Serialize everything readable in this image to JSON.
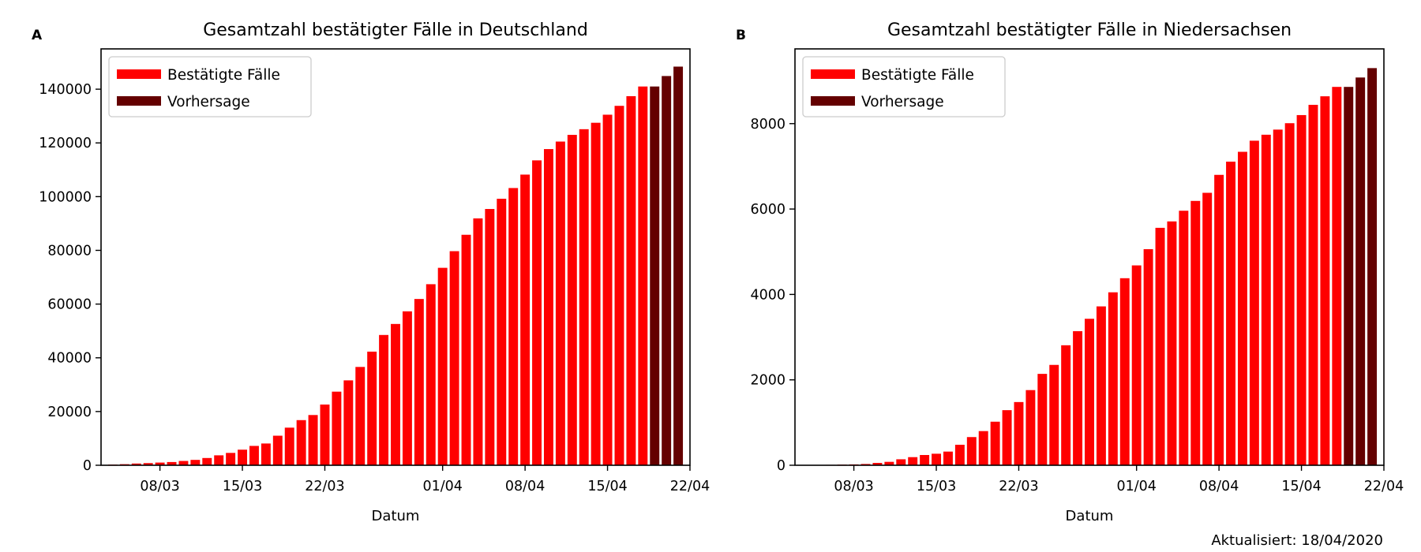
{
  "footer": "Aktualisiert: 18/04/2020",
  "colors": {
    "confirmed": "#ff0000",
    "forecast": "#640000",
    "axes": "#000000",
    "legend_border": "#cccccc"
  },
  "chart_data": [
    {
      "panel": "A",
      "type": "bar",
      "title": "Gesamtzahl bestätigter Fälle in Deutschland",
      "xlabel": "Datum",
      "ylabel": "",
      "legend": {
        "position": "top-left",
        "entries": [
          "Bestätigte Fälle",
          "Vorhersage"
        ]
      },
      "ylim": [
        0,
        155000
      ],
      "yticks": [
        0,
        20000,
        40000,
        60000,
        80000,
        100000,
        120000,
        140000
      ],
      "xlim": [
        "2020-03-03",
        "2020-04-22"
      ],
      "xticks": [
        {
          "date": "2020-03-08",
          "label": "08/03"
        },
        {
          "date": "2020-03-15",
          "label": "15/03"
        },
        {
          "date": "2020-03-22",
          "label": "22/03"
        },
        {
          "date": "2020-04-01",
          "label": "01/04"
        },
        {
          "date": "2020-04-08",
          "label": "08/04"
        },
        {
          "date": "2020-04-15",
          "label": "15/04"
        },
        {
          "date": "2020-04-22",
          "label": "22/04"
        }
      ],
      "series": [
        {
          "name": "Bestätigte Fälle",
          "x": [
            "2020-03-04",
            "2020-03-05",
            "2020-03-06",
            "2020-03-07",
            "2020-03-08",
            "2020-03-09",
            "2020-03-10",
            "2020-03-11",
            "2020-03-12",
            "2020-03-13",
            "2020-03-14",
            "2020-03-15",
            "2020-03-16",
            "2020-03-17",
            "2020-03-18",
            "2020-03-19",
            "2020-03-20",
            "2020-03-21",
            "2020-03-22",
            "2020-03-23",
            "2020-03-24",
            "2020-03-25",
            "2020-03-26",
            "2020-03-27",
            "2020-03-28",
            "2020-03-29",
            "2020-03-30",
            "2020-03-31",
            "2020-04-01",
            "2020-04-02",
            "2020-04-03",
            "2020-04-04",
            "2020-04-05",
            "2020-04-06",
            "2020-04-07",
            "2020-04-08",
            "2020-04-09",
            "2020-04-10",
            "2020-04-11",
            "2020-04-12",
            "2020-04-13",
            "2020-04-14",
            "2020-04-15",
            "2020-04-16",
            "2020-04-17",
            "2020-04-18"
          ],
          "values": [
            240,
            400,
            640,
            800,
            1000,
            1200,
            1600,
            2000,
            2700,
            3700,
            4600,
            5800,
            7200,
            8100,
            11000,
            14000,
            16800,
            18700,
            22600,
            27400,
            31600,
            36600,
            42300,
            48500,
            52600,
            57300,
            61900,
            67400,
            73500,
            79700,
            85800,
            91900,
            95400,
            99200,
            103200,
            108200,
            113500,
            117700,
            120500,
            123000,
            125100,
            127500,
            130500,
            133800,
            137400,
            141000
          ]
        },
        {
          "name": "Vorhersage",
          "x": [
            "2020-04-19",
            "2020-04-20",
            "2020-04-21"
          ],
          "values": [
            141000,
            144900,
            148400
          ]
        }
      ]
    },
    {
      "panel": "B",
      "type": "bar",
      "title": "Gesamtzahl bestätigter Fälle in Niedersachsen",
      "xlabel": "Datum",
      "ylabel": "",
      "legend": {
        "position": "top-left",
        "entries": [
          "Bestätigte Fälle",
          "Vorhersage"
        ]
      },
      "ylim": [
        0,
        9750
      ],
      "yticks": [
        0,
        2000,
        4000,
        6000,
        8000
      ],
      "xlim": [
        "2020-03-03",
        "2020-04-22"
      ],
      "xticks": [
        {
          "date": "2020-03-08",
          "label": "08/03"
        },
        {
          "date": "2020-03-15",
          "label": "15/03"
        },
        {
          "date": "2020-03-22",
          "label": "22/03"
        },
        {
          "date": "2020-04-01",
          "label": "01/04"
        },
        {
          "date": "2020-04-08",
          "label": "08/04"
        },
        {
          "date": "2020-04-15",
          "label": "15/04"
        },
        {
          "date": "2020-04-22",
          "label": "22/04"
        }
      ],
      "series": [
        {
          "name": "Bestätigte Fälle",
          "x": [
            "2020-03-04",
            "2020-03-05",
            "2020-03-06",
            "2020-03-07",
            "2020-03-08",
            "2020-03-09",
            "2020-03-10",
            "2020-03-11",
            "2020-03-12",
            "2020-03-13",
            "2020-03-14",
            "2020-03-15",
            "2020-03-16",
            "2020-03-17",
            "2020-03-18",
            "2020-03-19",
            "2020-03-20",
            "2020-03-21",
            "2020-03-22",
            "2020-03-23",
            "2020-03-24",
            "2020-03-25",
            "2020-03-26",
            "2020-03-27",
            "2020-03-28",
            "2020-03-29",
            "2020-03-30",
            "2020-03-31",
            "2020-04-01",
            "2020-04-02",
            "2020-04-03",
            "2020-04-04",
            "2020-04-05",
            "2020-04-06",
            "2020-04-07",
            "2020-04-08",
            "2020-04-09",
            "2020-04-10",
            "2020-04-11",
            "2020-04-12",
            "2020-04-13",
            "2020-04-14",
            "2020-04-15",
            "2020-04-16",
            "2020-04-17",
            "2020-04-18"
          ],
          "values": [
            2,
            5,
            10,
            15,
            20,
            30,
            55,
            80,
            140,
            190,
            240,
            270,
            320,
            480,
            660,
            800,
            1020,
            1290,
            1480,
            1760,
            2140,
            2350,
            2810,
            3140,
            3430,
            3720,
            4050,
            4380,
            4680,
            5060,
            5560,
            5710,
            5960,
            6190,
            6380,
            6800,
            7110,
            7340,
            7600,
            7740,
            7860,
            8010,
            8200,
            8440,
            8640,
            8860
          ]
        },
        {
          "name": "Vorhersage",
          "x": [
            "2020-04-19",
            "2020-04-20",
            "2020-04-21"
          ],
          "values": [
            8860,
            9080,
            9300
          ]
        }
      ]
    }
  ]
}
